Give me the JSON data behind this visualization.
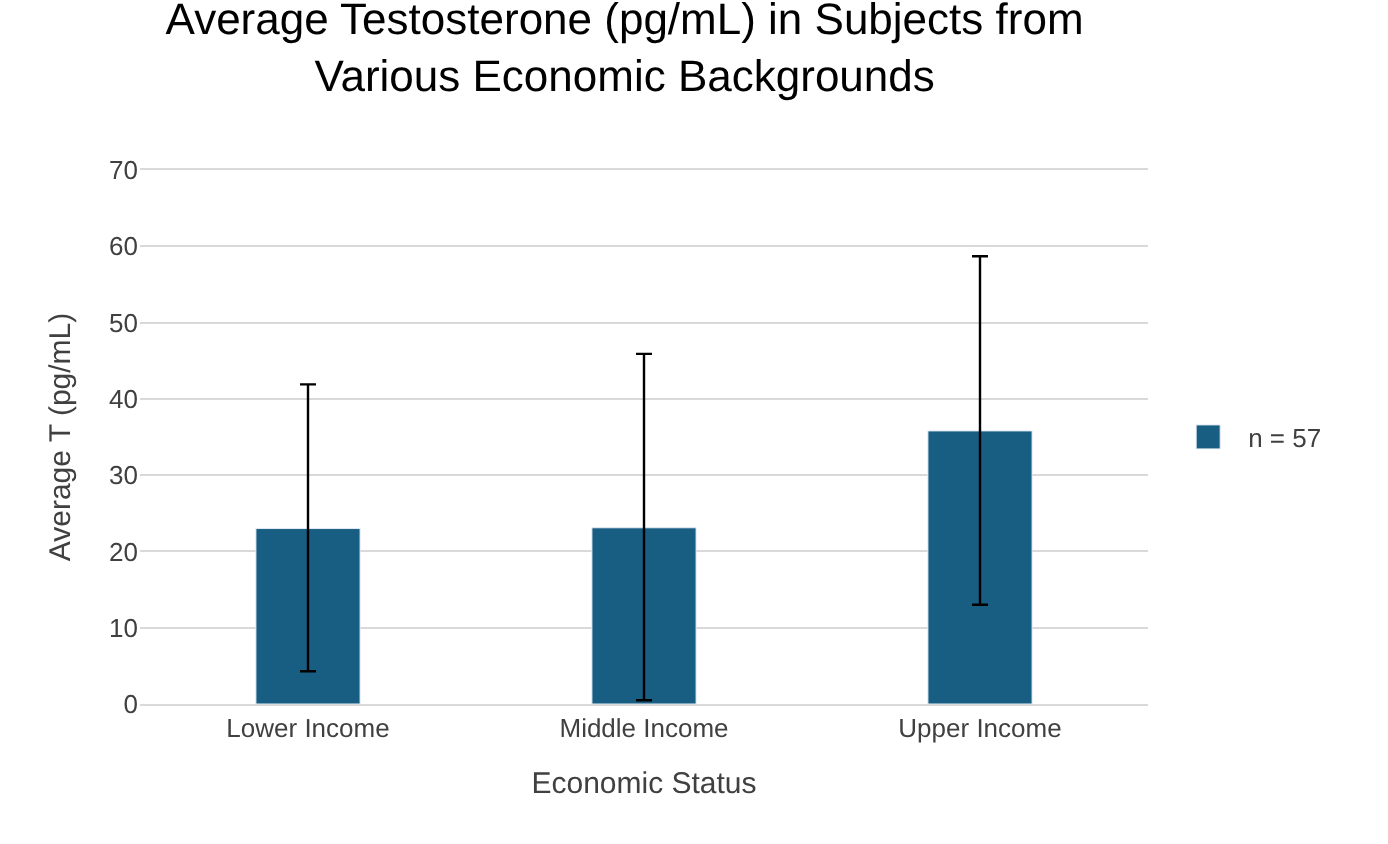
{
  "chart_data": {
    "type": "bar",
    "title": "Average Testosterone (pg/mL) in Subjects from Various Economic Backgrounds",
    "xlabel": "Economic Status",
    "ylabel": "Average T (pg/mL)",
    "categories": [
      "Lower Income",
      "Middle Income",
      "Upper Income"
    ],
    "series": [
      {
        "name": "n = 57",
        "color": "#175e82",
        "values": [
          23,
          23.1,
          35.8
        ],
        "errors": [
          [
            4.3,
            41.9
          ],
          [
            0.5,
            45.9
          ],
          [
            13,
            58.7
          ]
        ]
      }
    ],
    "ylim": [
      0,
      70
    ],
    "yticks": [
      0,
      10,
      20,
      30,
      40,
      50,
      60,
      70
    ],
    "grid": "y",
    "legend": "right"
  }
}
